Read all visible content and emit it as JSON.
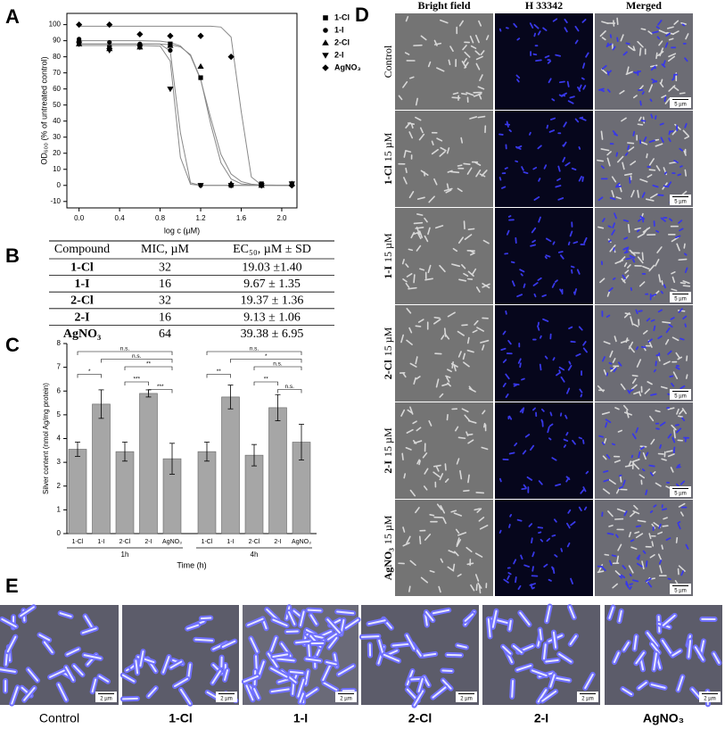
{
  "panel_labels": [
    "A",
    "B",
    "C",
    "D",
    "E"
  ],
  "chart_data": [
    {
      "type": "scatter",
      "x_label": "log c (µM)",
      "y_label": "OD₆₀₀ (% of untreated control)",
      "x": [
        0,
        0.3,
        0.6,
        0.9,
        1.2,
        1.5,
        1.8,
        2.1
      ],
      "series": [
        {
          "name": "1-Cl",
          "marker": "square",
          "color": "#000000",
          "values": [
            89,
            86,
            87,
            88,
            67,
            0,
            1,
            1
          ],
          "fit": {
            "x": [
              0,
              0.6,
              0.8,
              0.9,
              1.0,
              1.1,
              1.2,
              1.3,
              1.4,
              1.5,
              1.6,
              1.7,
              1.8,
              2.1
            ],
            "values": [
              88,
              88,
              87.9,
              87.5,
              86.2,
              81.3,
              66.2,
              37.9,
              14.1,
              4.0,
              1.0,
              0.3,
              0.1,
              0
            ]
          }
        },
        {
          "name": "1-I",
          "marker": "circle",
          "color": "#000000",
          "values": [
            91,
            89,
            88,
            84,
            0,
            0,
            0,
            0
          ],
          "fit": {
            "x": [
              0,
              0.6,
              0.8,
              0.9,
              1.0,
              1.1,
              1.2,
              1.3,
              1.4,
              1.5,
              1.6,
              1.7,
              1.8,
              2.1
            ],
            "values": [
              88,
              88,
              87.9,
              83.6,
              32.8,
              1.6,
              0,
              0,
              0,
              0,
              0,
              0,
              0,
              0
            ]
          }
        },
        {
          "name": "2-Cl",
          "marker": "triangle-up",
          "color": "#000000",
          "values": [
            88,
            85,
            86,
            87,
            74,
            1,
            0,
            1
          ],
          "fit": {
            "x": [
              0,
              0.6,
              0.8,
              0.9,
              1.0,
              1.1,
              1.2,
              1.3,
              1.4,
              1.5,
              1.6,
              1.7,
              1.8,
              2.1
            ],
            "values": [
              90,
              90,
              89.7,
              88.9,
              86.8,
              80.6,
              65.7,
              41.7,
              19.3,
              7.1,
              2.4,
              0.8,
              0.2,
              0
            ]
          }
        },
        {
          "name": "2-I",
          "marker": "triangle-down",
          "color": "#000000",
          "values": [
            88,
            84,
            86,
            60,
            0,
            0,
            0,
            1
          ],
          "fit": {
            "x": [
              0,
              0.6,
              0.8,
              0.9,
              1.0,
              1.1,
              1.2,
              1.3,
              1.4,
              1.5,
              1.6,
              1.7,
              1.8,
              2.1
            ],
            "values": [
              87,
              87,
              86.7,
              77.3,
              17.5,
              0.7,
              0,
              0,
              0,
              0,
              0,
              0,
              0,
              0
            ]
          }
        },
        {
          "name": "AgNO₃",
          "marker": "diamond",
          "color": "#000000",
          "values": [
            100,
            100,
            94,
            93,
            93,
            80,
            0,
            0
          ],
          "fit": {
            "x": [
              0,
              0.6,
              0.8,
              0.9,
              1.0,
              1.1,
              1.2,
              1.3,
              1.4,
              1.5,
              1.6,
              1.7,
              1.8,
              2.1
            ],
            "values": [
              99,
              99,
              99,
              99,
              99,
              99,
              99,
              99,
              98.5,
              92.3,
              46,
              5.2,
              0.3,
              0
            ]
          }
        }
      ],
      "xlim": [
        -0.12,
        2.15
      ],
      "xticks": [
        {
          "value": 0,
          "label": "0.0"
        },
        0.4,
        0.8,
        1.2,
        1.6,
        {
          "value": 2,
          "label": "2.0"
        }
      ],
      "ylim": [
        -14,
        107
      ],
      "yticks": [
        -10,
        0,
        10,
        20,
        30,
        40,
        50,
        60,
        70,
        80,
        90,
        100
      ],
      "legend": "upper right"
    },
    {
      "type": "bar",
      "x_label": "Time (h)",
      "y_label": "Silver content (nmol Ag/mg protein)",
      "categories": [
        "1-Cl",
        "1-I",
        "2-Cl",
        "2-I",
        "AgNO₃"
      ],
      "groups": [
        {
          "name": "1h",
          "values": [
            3.55,
            5.45,
            3.45,
            5.9,
            3.15
          ],
          "errors": [
            0.3,
            0.6,
            0.4,
            0.15,
            0.65
          ],
          "comparisons": [
            {
              "text": "n.s.",
              "between": [
                "1-Cl",
                "AgNO₃"
              ]
            },
            {
              "text": "n.s.",
              "between": [
                "1-I",
                "AgNO₃"
              ]
            },
            {
              "text": "**",
              "between": [
                "2-Cl",
                "AgNO₃"
              ]
            },
            {
              "text": "*",
              "between": [
                "1-Cl",
                "1-I"
              ]
            },
            {
              "text": "***",
              "between": [
                "2-Cl",
                "2-I"
              ]
            },
            {
              "text": "***",
              "between": [
                "2-I",
                "AgNO₃"
              ]
            }
          ]
        },
        {
          "name": "4h",
          "values": [
            3.45,
            5.75,
            3.3,
            5.3,
            3.85
          ],
          "errors": [
            0.4,
            0.5,
            0.45,
            0.55,
            0.75
          ],
          "comparisons": [
            {
              "text": "n.s.",
              "between": [
                "1-Cl",
                "AgNO₃"
              ]
            },
            {
              "text": "*",
              "between": [
                "1-I",
                "AgNO₃"
              ]
            },
            {
              "text": "n.s.",
              "between": [
                "2-Cl",
                "AgNO₃"
              ]
            },
            {
              "text": "**",
              "between": [
                "1-Cl",
                "1-I"
              ]
            },
            {
              "text": "**",
              "between": [
                "2-Cl",
                "2-I"
              ]
            },
            {
              "text": "n.s.",
              "between": [
                "2-I",
                "AgNO₃"
              ]
            }
          ]
        }
      ],
      "color": "#a6a6a6",
      "ylim": [
        0,
        8
      ],
      "yticks": [
        0,
        1,
        2,
        3,
        4,
        5,
        6,
        7,
        8
      ]
    }
  ],
  "table": {
    "header": [
      "Compound",
      "MIC, µM",
      "EC₅₀, µM ± SD"
    ],
    "rows": [
      [
        "1-Cl",
        32,
        "19.03 ±1.40"
      ],
      [
        "1-I",
        16,
        "9.67 ± 1.35"
      ],
      [
        "2-Cl",
        32,
        "19.37 ± 1.36"
      ],
      [
        "2-I",
        16,
        "9.13 ± 1.06"
      ],
      [
        "AgNO₃",
        64,
        "39.38 ± 6.95"
      ]
    ]
  },
  "microscopy_grid": {
    "columns": [
      "Bright field",
      "H 33342",
      "Merged"
    ],
    "rows": [
      {
        "name": "Control"
      },
      {
        "name": "1-Cl",
        "concentration": "15 µM"
      },
      {
        "name": "1-I",
        "concentration": "15 µM"
      },
      {
        "name": "2-Cl",
        "concentration": "15 µM"
      },
      {
        "name": "2-I",
        "concentration": "15 µM"
      },
      {
        "name": "AgNO₃",
        "concentration": "15 µM"
      }
    ],
    "scale_bar": "5 µm"
  },
  "micrographs": {
    "labels": [
      "Control",
      "1-Cl",
      "1-I",
      "2-Cl",
      "2-I",
      "AgNO₃"
    ],
    "scale_bar": "2 µm"
  }
}
